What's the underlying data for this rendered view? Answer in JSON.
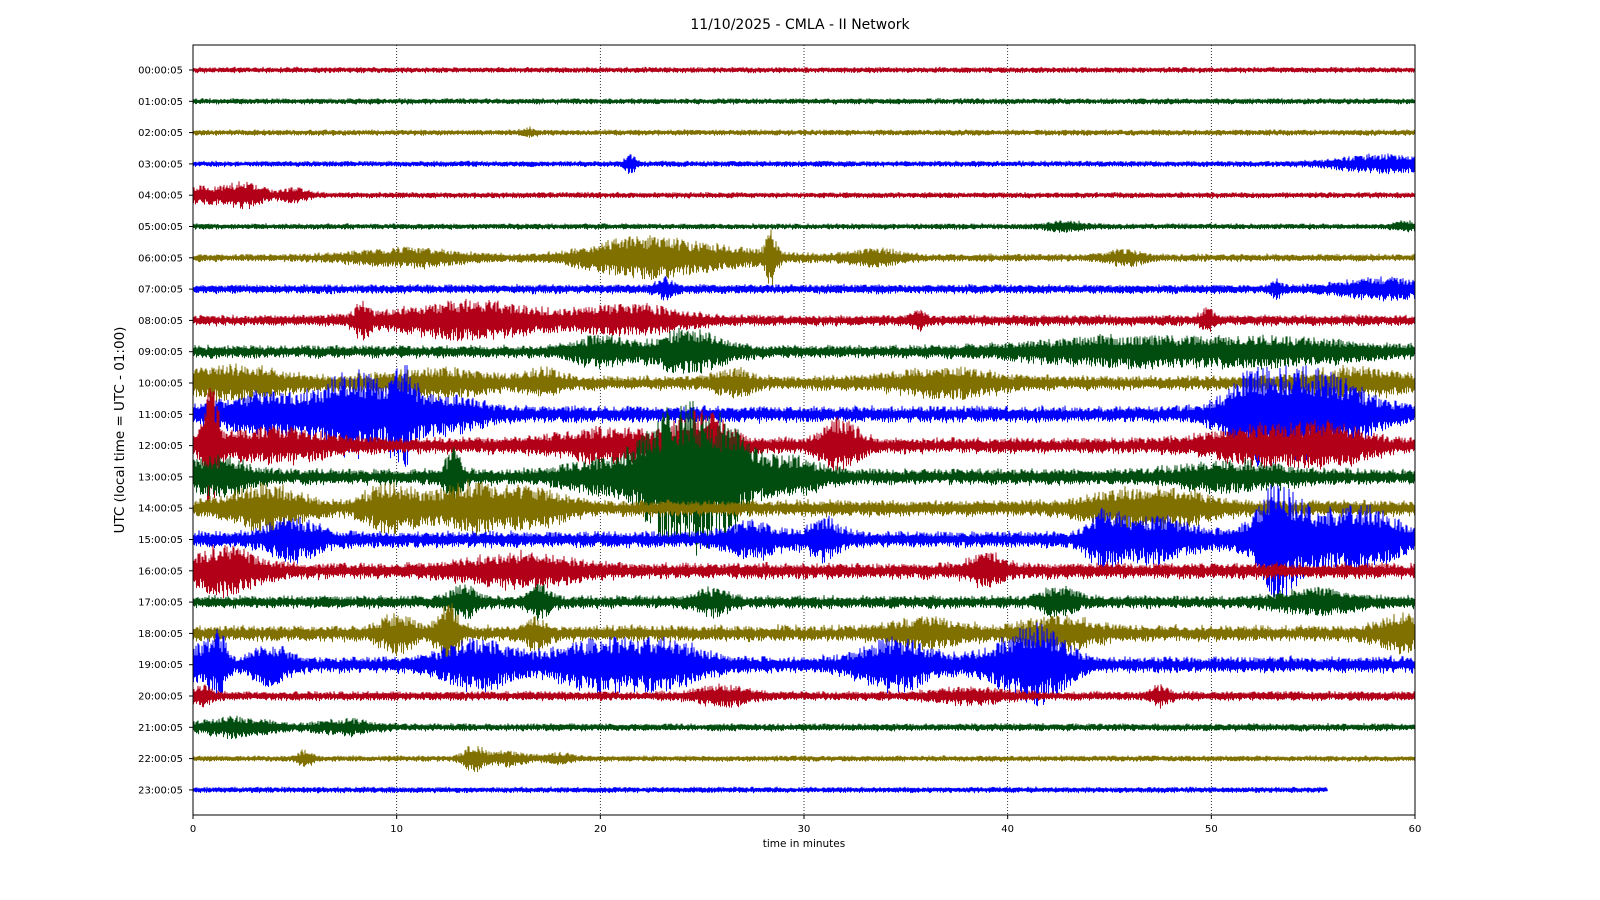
{
  "chart_data": {
    "type": "line",
    "title": "11/10/2025 - CMLA - II Network",
    "xlabel": "time in minutes",
    "ylabel": "UTC (local time = UTC - 01:00)",
    "xlim": [
      0,
      60
    ],
    "x_ticks": [
      "0",
      "10",
      "20",
      "30",
      "40",
      "50",
      "60"
    ],
    "grid": "vertical dotted at x ticks",
    "colors": [
      "#b30019",
      "#004d0f",
      "#807000",
      "#0000ff"
    ],
    "rows": [
      {
        "label": "00:00:05",
        "color": "#b30019",
        "amp": 3,
        "end": 60,
        "events": []
      },
      {
        "label": "01:00:05",
        "color": "#004d0f",
        "amp": 3,
        "end": 60,
        "events": []
      },
      {
        "label": "02:00:05",
        "color": "#807000",
        "amp": 3,
        "end": 60,
        "events": [
          [
            16.5,
            3,
            0.4
          ]
        ]
      },
      {
        "label": "03:00:05",
        "color": "#0000ff",
        "amp": 3,
        "end": 60,
        "events": [
          [
            21.5,
            9,
            0.3
          ],
          [
            58.5,
            8,
            2.5
          ]
        ]
      },
      {
        "label": "04:00:05",
        "color": "#b30019",
        "amp": 3,
        "end": 60,
        "events": [
          [
            0.4,
            7,
            0.8
          ],
          [
            2.4,
            12,
            1.2
          ],
          [
            5,
            6,
            0.8
          ]
        ]
      },
      {
        "label": "05:00:05",
        "color": "#004d0f",
        "amp": 3,
        "end": 60,
        "events": [
          [
            42.8,
            4,
            1
          ],
          [
            59.5,
            4,
            0.6
          ]
        ]
      },
      {
        "label": "06:00:05",
        "color": "#807000",
        "amp": 4,
        "end": 60,
        "events": [
          [
            10.5,
            8,
            3
          ],
          [
            21.5,
            12,
            3
          ],
          [
            24.5,
            10,
            4
          ],
          [
            28.4,
            25,
            0.3
          ],
          [
            33.5,
            7,
            1.5
          ],
          [
            45.8,
            6,
            1
          ]
        ]
      },
      {
        "label": "07:00:05",
        "color": "#0000ff",
        "amp": 5,
        "end": 60,
        "events": [
          [
            23.2,
            8,
            0.5
          ],
          [
            53.2,
            7,
            0.3
          ],
          [
            58.5,
            8,
            2.5
          ]
        ]
      },
      {
        "label": "08:00:05",
        "color": "#b30019",
        "amp": 6,
        "end": 60,
        "events": [
          [
            8.3,
            14,
            0.4
          ],
          [
            13.5,
            16,
            4
          ],
          [
            21.5,
            12,
            3
          ],
          [
            35.6,
            8,
            0.4
          ],
          [
            49.8,
            8,
            0.4
          ]
        ]
      },
      {
        "label": "09:00:05",
        "color": "#004d0f",
        "amp": 7,
        "end": 60,
        "events": [
          [
            20,
            12,
            1.5
          ],
          [
            24.3,
            18,
            2
          ],
          [
            45,
            10,
            5
          ],
          [
            53,
            10,
            5
          ]
        ]
      },
      {
        "label": "10:00:05",
        "color": "#807000",
        "amp": 8,
        "end": 60,
        "events": [
          [
            2,
            12,
            3
          ],
          [
            12,
            10,
            3
          ],
          [
            17.2,
            10,
            1
          ],
          [
            26.5,
            10,
            1
          ],
          [
            37,
            10,
            3
          ],
          [
            57,
            10,
            3
          ]
        ]
      },
      {
        "label": "11:00:05",
        "color": "#0000ff",
        "amp": 9,
        "end": 60,
        "events": [
          [
            4.5,
            18,
            3.5
          ],
          [
            8,
            34,
            1.5
          ],
          [
            10.3,
            38,
            0.8
          ],
          [
            12.5,
            14,
            2
          ],
          [
            52,
            26,
            1.5
          ],
          [
            54.8,
            40,
            3
          ]
        ]
      },
      {
        "label": "12:00:05",
        "color": "#b30019",
        "amp": 9,
        "end": 60,
        "events": [
          [
            0.9,
            55,
            0.4
          ],
          [
            4,
            12,
            3
          ],
          [
            20.5,
            12,
            3
          ],
          [
            25,
            30,
            1.5
          ],
          [
            31.8,
            22,
            1
          ],
          [
            52.5,
            14,
            3
          ],
          [
            56,
            14,
            2
          ]
        ]
      },
      {
        "label": "13:00:05",
        "color": "#004d0f",
        "amp": 9,
        "end": 60,
        "events": [
          [
            1,
            14,
            2
          ],
          [
            12.8,
            22,
            0.5
          ],
          [
            20,
            12,
            2
          ],
          [
            22.8,
            36,
            1.5
          ],
          [
            24.5,
            55,
            1.5
          ],
          [
            26.3,
            38,
            1.3
          ],
          [
            29,
            16,
            2
          ],
          [
            51,
            10,
            3
          ]
        ]
      },
      {
        "label": "14:00:05",
        "color": "#807000",
        "amp": 9,
        "end": 60,
        "events": [
          [
            3.5,
            18,
            2
          ],
          [
            9.8,
            20,
            1.5
          ],
          [
            13.8,
            20,
            2
          ],
          [
            17,
            14,
            1.5
          ],
          [
            45.5,
            12,
            2
          ],
          [
            48.5,
            12,
            2
          ]
        ]
      },
      {
        "label": "15:00:05",
        "color": "#0000ff",
        "amp": 9,
        "end": 60,
        "events": [
          [
            5,
            16,
            1.5
          ],
          [
            27.5,
            14,
            1.5
          ],
          [
            31,
            16,
            1
          ],
          [
            44.8,
            22,
            1
          ],
          [
            47.3,
            18,
            2
          ],
          [
            53.2,
            34,
            1
          ],
          [
            55,
            28,
            3
          ],
          [
            58,
            16,
            1.5
          ]
        ]
      },
      {
        "label": "16:00:05",
        "color": "#b30019",
        "amp": 9,
        "end": 60,
        "events": [
          [
            1.5,
            20,
            1.8
          ],
          [
            16,
            12,
            3
          ],
          [
            39,
            12,
            1
          ]
        ]
      },
      {
        "label": "17:00:05",
        "color": "#004d0f",
        "amp": 7,
        "end": 60,
        "events": [
          [
            13.3,
            14,
            0.8
          ],
          [
            17,
            14,
            0.6
          ],
          [
            25.5,
            10,
            1
          ],
          [
            42.5,
            12,
            1
          ],
          [
            55,
            10,
            2
          ]
        ]
      },
      {
        "label": "18:00:05",
        "color": "#807000",
        "amp": 9,
        "end": 60,
        "events": [
          [
            10,
            14,
            1
          ],
          [
            12.5,
            26,
            0.6
          ],
          [
            16.8,
            12,
            0.6
          ],
          [
            36,
            10,
            2
          ],
          [
            42.5,
            12,
            2
          ],
          [
            59.3,
            14,
            1.2
          ]
        ]
      },
      {
        "label": "19:00:05",
        "color": "#0000ff",
        "amp": 9,
        "end": 60,
        "events": [
          [
            0.5,
            16,
            0.8
          ],
          [
            1.3,
            24,
            0.4
          ],
          [
            3.8,
            16,
            1
          ],
          [
            14,
            20,
            2
          ],
          [
            20,
            22,
            2.5
          ],
          [
            23.5,
            16,
            2
          ],
          [
            34.5,
            22,
            2
          ],
          [
            40.5,
            18,
            2
          ],
          [
            41.8,
            22,
            1.5
          ]
        ]
      },
      {
        "label": "20:00:05",
        "color": "#b30019",
        "amp": 5,
        "end": 60,
        "events": [
          [
            0.5,
            8,
            0.5
          ],
          [
            26,
            8,
            1.5
          ],
          [
            38,
            6,
            2
          ],
          [
            47.5,
            8,
            0.5
          ]
        ]
      },
      {
        "label": "21:00:05",
        "color": "#004d0f",
        "amp": 4,
        "end": 60,
        "events": [
          [
            2,
            8,
            2
          ],
          [
            7.5,
            6,
            1.5
          ]
        ]
      },
      {
        "label": "22:00:05",
        "color": "#807000",
        "amp": 3,
        "end": 60,
        "events": [
          [
            5.5,
            8,
            0.4
          ],
          [
            13.8,
            12,
            0.6
          ],
          [
            15.5,
            6,
            1
          ],
          [
            18,
            4,
            0.8
          ]
        ]
      },
      {
        "label": "23:00:05",
        "color": "#0000ff",
        "amp": 3,
        "end": 55.7,
        "events": []
      }
    ]
  }
}
